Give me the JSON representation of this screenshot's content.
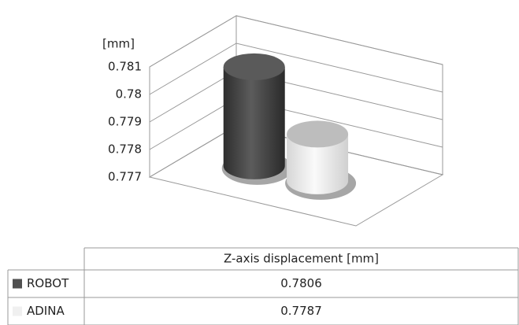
{
  "chart_data": {
    "type": "cylinder3d",
    "y_label": "[mm]",
    "categories": [
      "Z-axis displacement [mm]"
    ],
    "series": [
      {
        "name": "ROBOT",
        "color": "#505050",
        "values": [
          0.7806
        ]
      },
      {
        "name": "ADINA",
        "color": "#f0f0f0",
        "values": [
          0.7787
        ]
      }
    ],
    "ylim": [
      0.777,
      0.781
    ],
    "yticks": [
      0.777,
      0.778,
      0.779,
      0.78,
      0.781
    ],
    "grid": true
  }
}
